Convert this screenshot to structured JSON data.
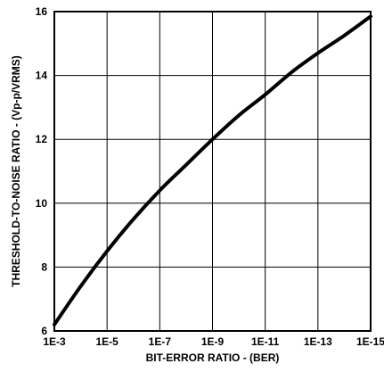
{
  "chart_data": {
    "type": "line",
    "title": "",
    "xlabel": "BIT-ERROR RATIO - (BER)",
    "ylabel": "THRESHOLD-TO-NOISE RATIO - (Vp-p/VRMS)",
    "x_scale": "log",
    "x_ticks": [
      {
        "value": -3,
        "label": "1E-3"
      },
      {
        "value": -5,
        "label": "1E-5"
      },
      {
        "value": -7,
        "label": "1E-7"
      },
      {
        "value": -9,
        "label": "1E-9"
      },
      {
        "value": -11,
        "label": "1E-11"
      },
      {
        "value": -13,
        "label": "1E-13"
      },
      {
        "value": -15,
        "label": "1E-15"
      }
    ],
    "y_ticks": [
      {
        "value": 6,
        "label": "6"
      },
      {
        "value": 8,
        "label": "8"
      },
      {
        "value": 10,
        "label": "10"
      },
      {
        "value": 12,
        "label": "12"
      },
      {
        "value": 14,
        "label": "14"
      },
      {
        "value": 16,
        "label": "16"
      }
    ],
    "xlim": [
      "1E-3",
      "1E-15"
    ],
    "ylim": [
      6,
      16
    ],
    "grid": true,
    "legend": "none",
    "line_color": "#000000",
    "series": [
      {
        "name": "",
        "x": [
          "1E-3",
          "1E-4",
          "1E-5",
          "1E-6",
          "1E-7",
          "1E-8",
          "1E-9",
          "1E-10",
          "1E-11",
          "1E-12",
          "1E-13",
          "1E-14",
          "1E-15"
        ],
        "y": [
          6.2,
          7.4,
          8.5,
          9.5,
          10.4,
          11.2,
          12.0,
          12.75,
          13.4,
          14.1,
          14.7,
          15.25,
          15.85
        ]
      }
    ]
  }
}
